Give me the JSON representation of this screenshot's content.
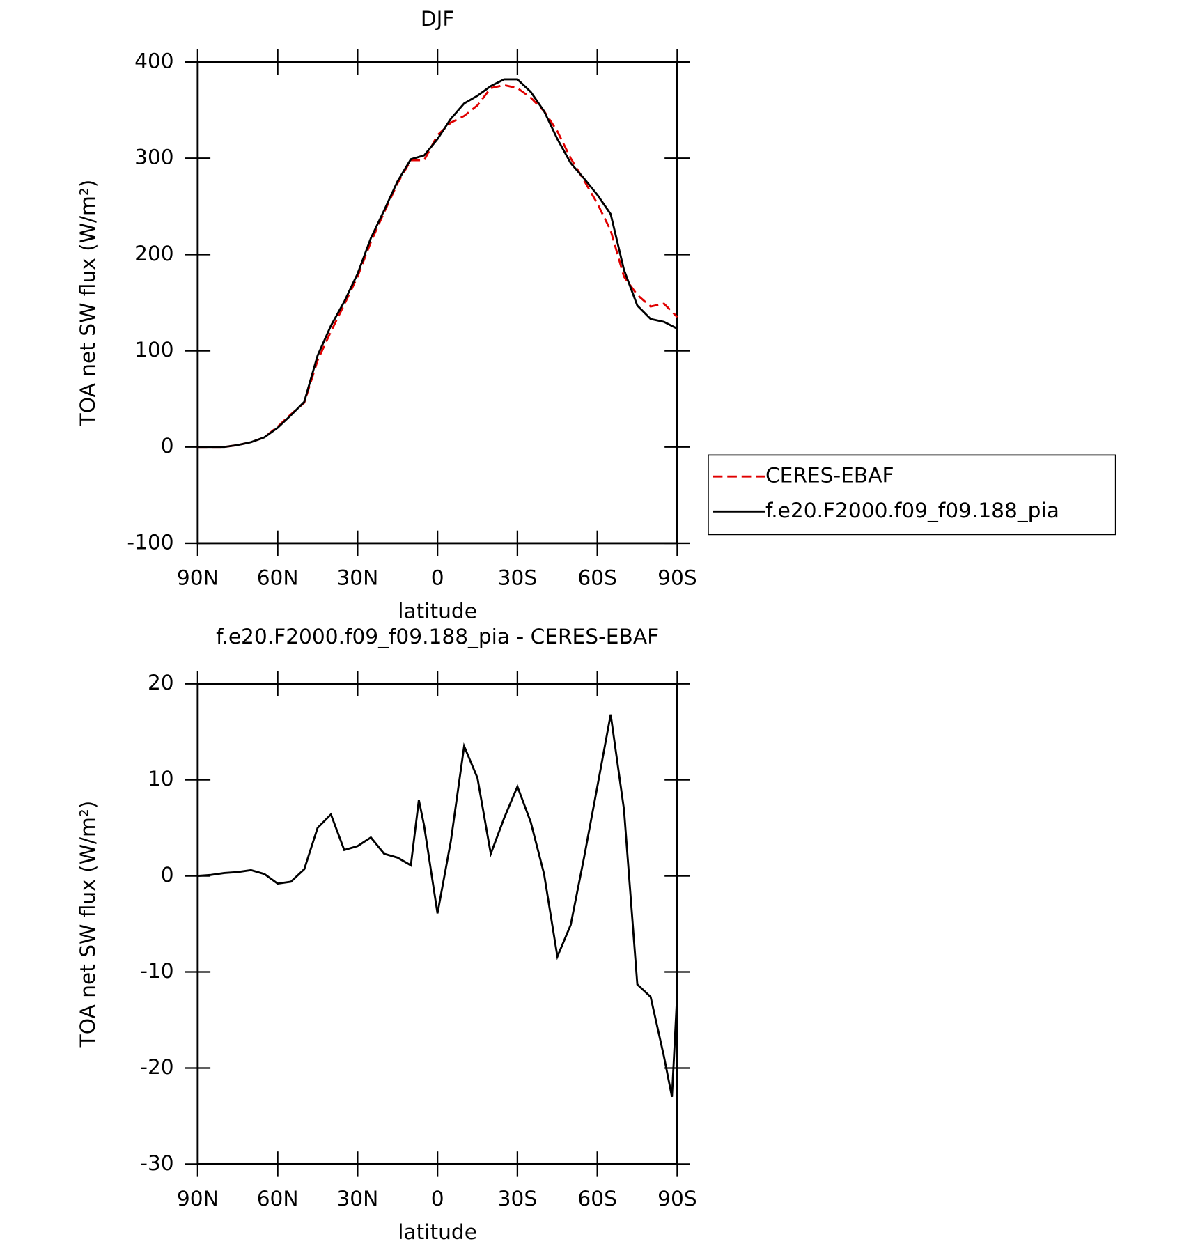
{
  "chart_data": [
    {
      "type": "line",
      "title": "DJF",
      "ylabel": "TOA net SW flux (W/m²)",
      "xlabel": "latitude",
      "x": [
        90,
        85,
        80,
        75,
        70,
        65,
        60,
        55,
        50,
        45,
        40,
        35,
        30,
        25,
        20,
        15,
        10,
        5,
        0,
        -5,
        -10,
        -15,
        -20,
        -25,
        -30,
        -35,
        -40,
        -45,
        -50,
        -55,
        -60,
        -65,
        -70,
        -75,
        -80,
        -85,
        -90
      ],
      "series": [
        {
          "name": "CERES-EBAF",
          "color": "#e00000",
          "dash": true,
          "values": [
            0,
            0,
            0,
            2,
            5,
            10,
            21,
            34,
            46,
            90,
            120,
            148,
            177,
            213,
            244,
            274,
            298,
            298,
            324,
            337,
            344,
            355,
            373,
            376,
            373,
            363,
            349,
            328,
            300,
            277,
            253,
            225,
            177,
            158,
            146,
            149,
            135
          ]
        },
        {
          "name": "f.e20.F2000.f09_f09.188_pia",
          "color": "#000000",
          "dash": false,
          "values": [
            0,
            0,
            0,
            2,
            5,
            10,
            20,
            33,
            47,
            95,
            126,
            151,
            180,
            217,
            246,
            276,
            299,
            303,
            320,
            341,
            357,
            365,
            375,
            382,
            382,
            369,
            349,
            320,
            295,
            279,
            262,
            242,
            184,
            147,
            133,
            130,
            123
          ]
        }
      ],
      "xlim": [
        90,
        -90
      ],
      "xticks": [
        {
          "value": 90,
          "label": "90N"
        },
        {
          "value": 60,
          "label": "60N"
        },
        {
          "value": 30,
          "label": "30N"
        },
        0,
        {
          "value": -30,
          "label": "30S"
        },
        {
          "value": -60,
          "label": "60S"
        },
        {
          "value": -90,
          "label": "90S"
        }
      ],
      "ylim": [
        -100,
        400
      ],
      "yticks": [
        -100,
        0,
        100,
        200,
        300,
        400
      ],
      "legend": "outside-right"
    },
    {
      "type": "line",
      "title": "f.e20.F2000.f09_f09.188_pia - CERES-EBAF",
      "ylabel": "TOA net SW flux (W/m²)",
      "xlabel": "latitude",
      "x": [
        90,
        85,
        80,
        75,
        70,
        65,
        60,
        55,
        50,
        45,
        40,
        35,
        30,
        25,
        20,
        15,
        10,
        7,
        5,
        0,
        -5,
        -10,
        -15,
        -20,
        -25,
        -30,
        -35,
        -40,
        -45,
        -50,
        -55,
        -60,
        -65,
        -70,
        -75,
        -80,
        -85,
        -88,
        -90
      ],
      "series": [
        {
          "color": "#000000",
          "dash": false,
          "values": [
            0,
            0.1,
            0.3,
            0.4,
            0.6,
            0.2,
            -0.8,
            -0.6,
            0.7,
            5,
            6.4,
            2.7,
            3.1,
            4,
            2.3,
            1.9,
            1.1,
            7.9,
            5.2,
            -3.9,
            3.6,
            13.5,
            10.2,
            2.3,
            6,
            9.3,
            5.6,
            0.2,
            -8.4,
            -5.1,
            1.9,
            9.3,
            16.8,
            6.9,
            -11.3,
            -12.6,
            -18.8,
            -23,
            -12.1
          ]
        }
      ],
      "xlim": [
        90,
        -90
      ],
      "xticks": [
        {
          "value": 90,
          "label": "90N"
        },
        {
          "value": 60,
          "label": "60N"
        },
        {
          "value": 30,
          "label": "30N"
        },
        0,
        {
          "value": -30,
          "label": "30S"
        },
        {
          "value": -60,
          "label": "60S"
        },
        {
          "value": -90,
          "label": "90S"
        }
      ],
      "ylim": [
        -30,
        20
      ],
      "yticks": [
        -30,
        -20,
        -10,
        0,
        10,
        20
      ]
    }
  ]
}
